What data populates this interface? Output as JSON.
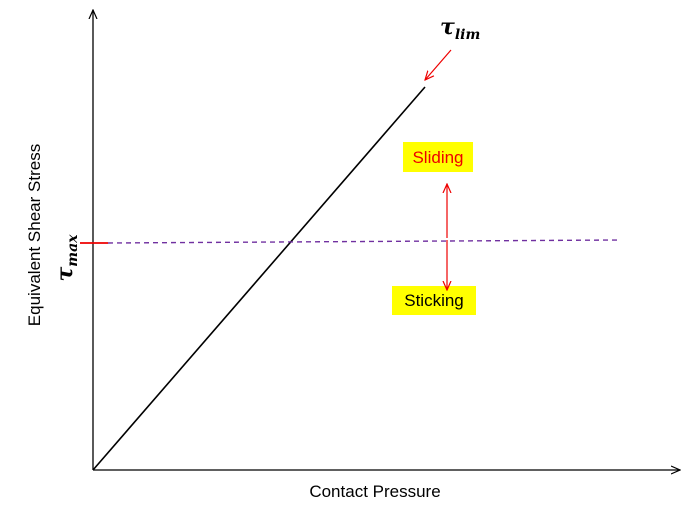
{
  "diagram": {
    "x_axis_label": "Contact Pressure",
    "y_axis_label": "Equivalent Shear Stress",
    "tau_lim": {
      "symbol": "τ",
      "subscript": "lim"
    },
    "tau_max": {
      "symbol": "τ",
      "subscript": "max"
    },
    "sliding": "Sliding",
    "sticking": "Sticking"
  }
}
